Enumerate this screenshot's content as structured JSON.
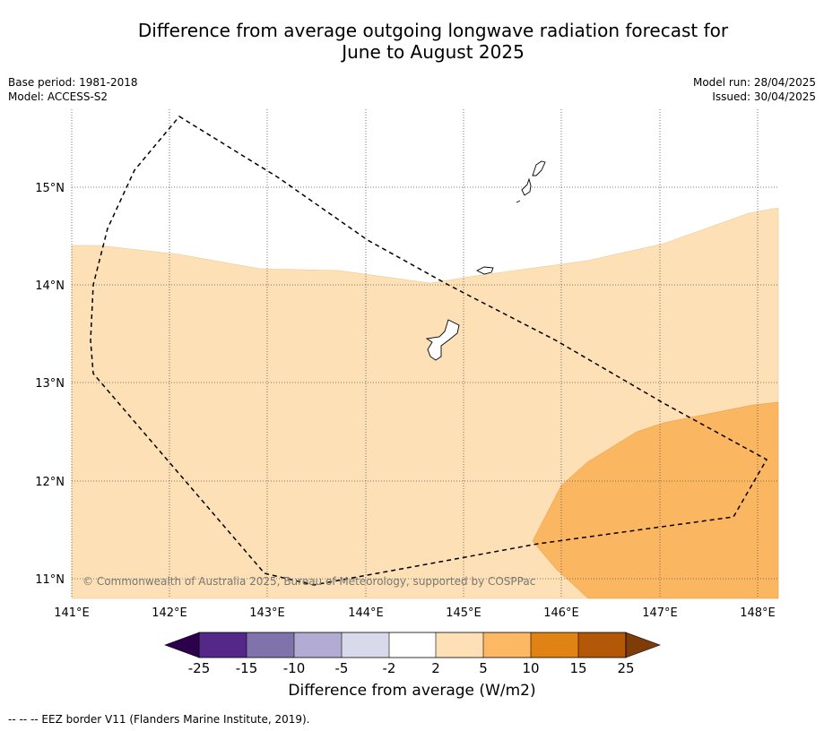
{
  "title": {
    "line1": "Difference from average outgoing longwave radiation forecast for",
    "line2": "June to August 2025"
  },
  "meta": {
    "base_period": "Base period: 1981-2018",
    "model": "Model: ACCESS-S2",
    "model_run": "Model run: 28/04/2025",
    "issued": "Issued: 30/04/2025"
  },
  "map": {
    "lon_range": [
      141.0,
      148.2
    ],
    "lat_range": [
      10.8,
      15.8
    ],
    "lon_ticks": [
      "141°E",
      "142°E",
      "143°E",
      "144°E",
      "145°E",
      "146°E",
      "147°E",
      "148°E"
    ],
    "lat_ticks": [
      "15°N",
      "14°N",
      "13°N",
      "12°N",
      "11°N"
    ],
    "copyright": "© Commonwealth of Australia 2025, Bureau of Meteorology, supported by COSPPac",
    "fill_colors": {
      "2_to_5": "#fde0b5",
      "5_to_10": "#fbb661"
    }
  },
  "colorbar": {
    "labels": [
      "-25",
      "-15",
      "-10",
      "-5",
      "-2",
      "2",
      "5",
      "10",
      "15",
      "25"
    ],
    "colors": [
      "#2d004b",
      "#542788",
      "#8073ac",
      "#b2abd2",
      "#d8daeb",
      "#ffffff",
      "#fee0b6",
      "#fdb863",
      "#e08214",
      "#b35806",
      "#7f3b08"
    ],
    "title": "Difference from average (W/m2)"
  },
  "footnote": "--  --  -- EEZ border V11 (Flanders Marine Institute, 2019)."
}
